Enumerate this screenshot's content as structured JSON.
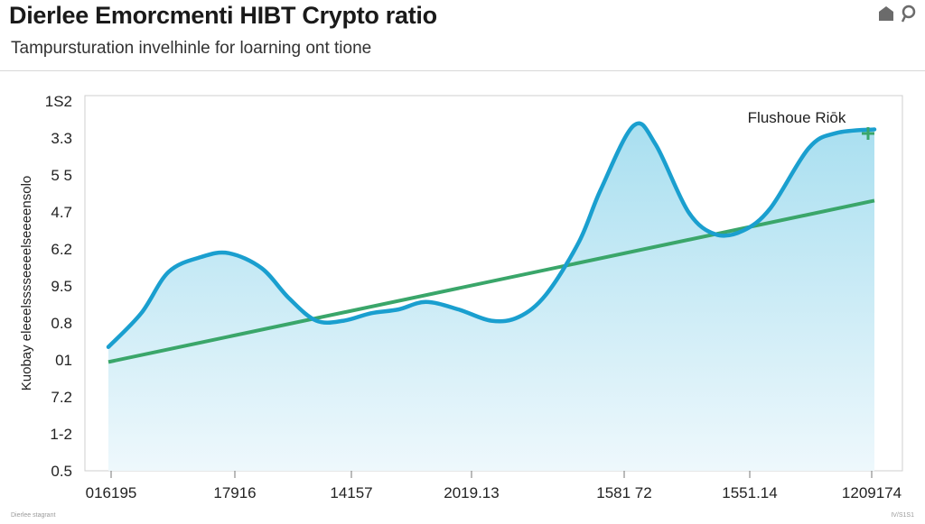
{
  "header": {
    "title": "Dierlee Emorcmenti HIBT Crypto ratio",
    "subtitle": "Tampursturation invelhinle for loarning ont tione"
  },
  "icons": {
    "home": "home-icon",
    "search": "search-icon"
  },
  "colors": {
    "series_line": "#1a9fcf",
    "area_fill_top": "#a9dff0",
    "area_fill_bottom": "#eef8fc",
    "trend_line": "#3aa66a",
    "plus_marker": "#3aa66a"
  },
  "chart_data": {
    "type": "area",
    "ylabel": "Kuobay eleeelsssseeeelseeeensolo",
    "y_tick_labels": [
      "1S2",
      "3.3",
      "5 5",
      "4.7",
      "6.2",
      "9.5",
      "0.8",
      "01",
      "7.2",
      "1-2",
      "0.5"
    ],
    "x_tick_labels": [
      "016195",
      "17916",
      "14157",
      "2019.13",
      "1581 72",
      "1551.14",
      "1209174"
    ],
    "ylim": [
      0,
      10
    ],
    "grid": false,
    "annotation": "Flushoue Riōk",
    "series": [
      {
        "x": [
          0,
          0.3,
          0.55,
          0.85,
          1.1,
          1.4,
          1.65,
          1.9,
          2.15,
          2.4,
          2.65,
          2.9,
          3.2,
          3.5,
          3.75,
          4.0,
          4.3,
          4.5,
          4.8,
          5.0,
          5.3,
          5.55,
          5.8,
          6.05,
          6.4,
          6.65,
          7.0
        ],
        "y": [
          3.3,
          4.2,
          5.3,
          5.7,
          5.8,
          5.4,
          4.6,
          4.0,
          4.0,
          4.2,
          4.3,
          4.5,
          4.3,
          4.0,
          4.1,
          4.7,
          6.1,
          7.5,
          9.2,
          8.7,
          6.9,
          6.3,
          6.4,
          7.0,
          8.6,
          9.0,
          9.1
        ]
      }
    ],
    "trend": {
      "x": [
        0,
        7
      ],
      "y": [
        2.9,
        7.2
      ]
    }
  },
  "footer": {
    "left": "Dierlee stagrant",
    "right": "IV/S1S1"
  }
}
